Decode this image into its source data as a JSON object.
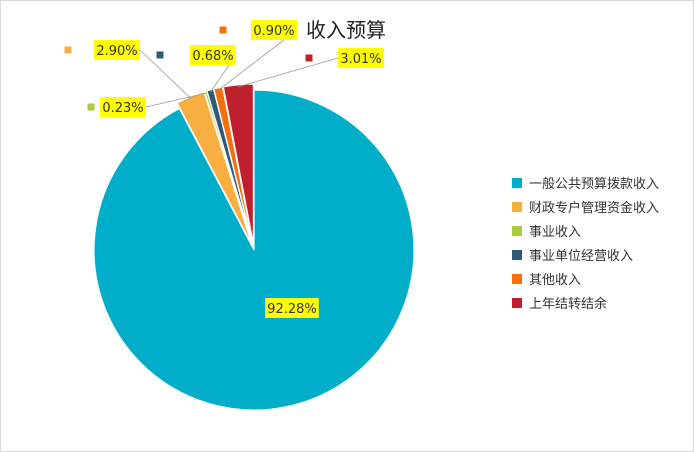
{
  "chart_data": {
    "type": "pie",
    "title": "收入预算",
    "series": [
      {
        "name": "一般公共预算拨款收入",
        "value": 92.28,
        "label": "92.28%",
        "color": "#00AECA"
      },
      {
        "name": "财政专户管理资金收入",
        "value": 2.9,
        "label": "2.90%",
        "color": "#F8AE40"
      },
      {
        "name": "事业收入",
        "value": 0.23,
        "label": "0.23%",
        "color": "#A9CD3B"
      },
      {
        "name": "事业单位经营收入",
        "value": 0.68,
        "label": "0.68%",
        "color": "#2E5A79"
      },
      {
        "name": "其他收入",
        "value": 0.9,
        "label": "0.90%",
        "color": "#F76F0C"
      },
      {
        "name": "上年结转结余",
        "value": 3.01,
        "label": "3.01%",
        "color": "#C0202E"
      }
    ],
    "label_background": "#FFFF00",
    "legend_position": "right"
  }
}
